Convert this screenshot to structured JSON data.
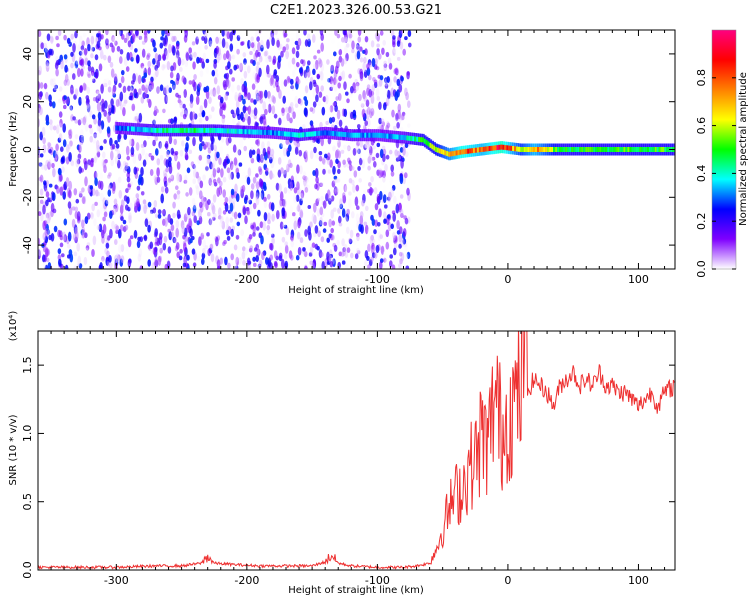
{
  "title": "C2E1.2023.326.00.53.G21",
  "chart_data": [
    {
      "type": "heatmap",
      "xlabel": "Height of straight line (km)",
      "ylabel": "Frequency (Hz)",
      "xlim": [
        -360,
        128
      ],
      "ylim": [
        -50,
        50
      ],
      "xticks": [
        -300,
        -200,
        -100,
        0,
        100
      ],
      "xtick_labels": [
        "-300",
        "-200",
        "-100",
        "0",
        "100"
      ],
      "yticks": [
        -40,
        -20,
        0,
        20,
        40
      ],
      "ytick_labels": [
        "-40",
        "-20",
        "0",
        "20",
        "40"
      ],
      "colorbar": {
        "label": "Normalized spectral amplitude",
        "range": [
          0,
          1
        ],
        "ticks": [
          0.0,
          0.2,
          0.4,
          0.6,
          0.8
        ],
        "tick_labels": [
          "0.0",
          "0.2",
          "0.4",
          "0.6",
          "0.8"
        ],
        "colors": [
          "#ffffff",
          "#7f00ff",
          "#0000ff",
          "#00ffff",
          "#00ff00",
          "#ffff00",
          "#ff8000",
          "#ff0000",
          "#ff0080"
        ]
      },
      "noise_region": {
        "x_range": [
          -360,
          -75
        ],
        "freq_range": [
          -50,
          50
        ]
      },
      "signal_track": {
        "points": [
          {
            "x": -300,
            "freq": 9,
            "amp": 0.3
          },
          {
            "x": -270,
            "freq": 8,
            "amp": 0.4
          },
          {
            "x": -240,
            "freq": 8,
            "amp": 0.45
          },
          {
            "x": -225,
            "freq": 8,
            "amp": 0.4
          },
          {
            "x": -180,
            "freq": 7,
            "amp": 0.3
          },
          {
            "x": -160,
            "freq": 6,
            "amp": 0.4
          },
          {
            "x": -140,
            "freq": 7,
            "amp": 0.3
          },
          {
            "x": -120,
            "freq": 6,
            "amp": 0.35
          },
          {
            "x": -100,
            "freq": 6,
            "amp": 0.3
          },
          {
            "x": -80,
            "freq": 5,
            "amp": 0.35
          },
          {
            "x": -65,
            "freq": 4,
            "amp": 0.5
          },
          {
            "x": -55,
            "freq": 0,
            "amp": 0.55
          },
          {
            "x": -45,
            "freq": -2,
            "amp": 0.7
          },
          {
            "x": -35,
            "freq": -1,
            "amp": 0.85
          },
          {
            "x": -20,
            "freq": 0,
            "amp": 0.75
          },
          {
            "x": -5,
            "freq": 1,
            "amp": 0.9
          },
          {
            "x": 10,
            "freq": 0,
            "amp": 0.6
          },
          {
            "x": 20,
            "freq": 0,
            "amp": 0.75
          },
          {
            "x": 40,
            "freq": 0,
            "amp": 0.5
          },
          {
            "x": 60,
            "freq": 0,
            "amp": 0.5
          },
          {
            "x": 80,
            "freq": 0,
            "amp": 0.5
          },
          {
            "x": 100,
            "freq": 0,
            "amp": 0.5
          },
          {
            "x": 128,
            "freq": 0,
            "amp": 0.5
          }
        ]
      }
    },
    {
      "type": "line",
      "xlabel": "Height of straight line (km)",
      "ylabel": "SNR (10 * v/v)",
      "y_multiplier": "(x10⁴)",
      "xlim": [
        -360,
        128
      ],
      "ylim": [
        0,
        1.75
      ],
      "xticks": [
        -300,
        -200,
        -100,
        0,
        100
      ],
      "xtick_labels": [
        "-300",
        "-200",
        "-100",
        "0",
        "100"
      ],
      "yticks": [
        0.0,
        0.5,
        1.0,
        1.5
      ],
      "ytick_labels": [
        "0.0",
        "0.5",
        "1.0",
        "1.5"
      ],
      "color": "#ee3030",
      "series": [
        {
          "x": [
            -360,
            -330,
            -300,
            -270,
            -250,
            -235,
            -230,
            -225,
            -210,
            -190,
            -170,
            -150,
            -140,
            -135,
            -130,
            -120,
            -100,
            -80,
            -70,
            -60,
            -55,
            -50,
            -45,
            -40,
            -35,
            -30,
            -25,
            -20,
            -15,
            -10,
            -5,
            0,
            5,
            10,
            12,
            15,
            20,
            25,
            30,
            35,
            40,
            45,
            50,
            55,
            60,
            65,
            70,
            75,
            80,
            85,
            90,
            95,
            100,
            105,
            110,
            115,
            120,
            128
          ],
          "y": [
            0.02,
            0.02,
            0.02,
            0.03,
            0.03,
            0.05,
            0.1,
            0.05,
            0.04,
            0.03,
            0.03,
            0.03,
            0.06,
            0.11,
            0.05,
            0.03,
            0.02,
            0.02,
            0.03,
            0.05,
            0.15,
            0.3,
            0.45,
            0.55,
            0.6,
            0.75,
            0.8,
            1.0,
            0.9,
            1.3,
            1.0,
            1.15,
            1.2,
            1.35,
            1.75,
            1.3,
            1.4,
            1.35,
            1.3,
            1.2,
            1.35,
            1.4,
            1.45,
            1.35,
            1.4,
            1.35,
            1.45,
            1.35,
            1.35,
            1.3,
            1.3,
            1.25,
            1.2,
            1.25,
            1.3,
            1.2,
            1.3,
            1.35
          ]
        }
      ]
    }
  ]
}
